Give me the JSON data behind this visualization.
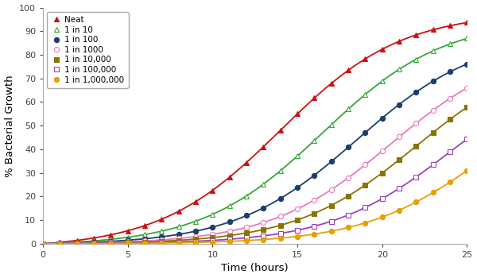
{
  "series": [
    {
      "label": "Neat",
      "color": "#cc1111",
      "marker": "^",
      "filled": true,
      "t_mid": 14.0,
      "L": 100,
      "k": 0.28
    },
    {
      "label": "1 in 10",
      "color": "#33aa33",
      "marker": "^",
      "filled": false,
      "t_mid": 16.5,
      "L": 96,
      "k": 0.28
    },
    {
      "label": "1 in 100",
      "color": "#1a3f6f",
      "marker": "o",
      "filled": true,
      "t_mid": 18.5,
      "L": 89,
      "k": 0.28
    },
    {
      "label": "1 in 1000",
      "color": "#ee77bb",
      "marker": "o",
      "filled": false,
      "t_mid": 20.5,
      "L": 85,
      "k": 0.28
    },
    {
      "label": "1 in 10,000",
      "color": "#8b7300",
      "marker": "s",
      "filled": true,
      "t_mid": 22.0,
      "L": 83,
      "k": 0.28
    },
    {
      "label": "1 in 100,000",
      "color": "#9944bb",
      "marker": "s",
      "filled": false,
      "t_mid": 24.0,
      "L": 78,
      "k": 0.28
    },
    {
      "label": "1 in 1,000,000",
      "color": "#e8a000",
      "marker": "o",
      "filled": true,
      "t_mid": 26.0,
      "L": 72,
      "k": 0.28
    }
  ],
  "xlabel": "Time (hours)",
  "ylabel": "% Bacterial Growth",
  "xlim": [
    0,
    25
  ],
  "ylim": [
    0,
    100
  ],
  "xticks": [
    0,
    5,
    10,
    15,
    20,
    25
  ],
  "yticks": [
    0,
    10,
    20,
    30,
    40,
    50,
    60,
    70,
    80,
    90,
    100
  ],
  "figsize": [
    6.0,
    3.5
  ],
  "dpi": 100,
  "bg_color": "#ffffff",
  "legend_fontsize": 7.5,
  "axis_label_fontsize": 9.5,
  "tick_fontsize": 8,
  "linewidth": 1.3,
  "markersize": 4.5,
  "marker_interval": 1
}
